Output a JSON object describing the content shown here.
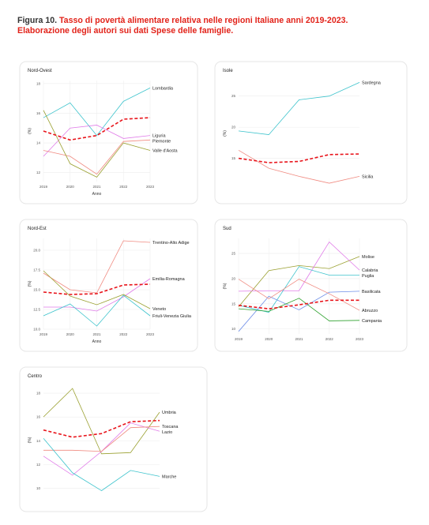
{
  "figure": {
    "label": "Figura 10.",
    "caption": "Tasso di povertà alimentare relativa nelle regioni Italiane anni 2019-2023. Elaborazione degli autori sui dati Spese delle famiglie."
  },
  "chart_data": [
    {
      "type": "line",
      "title": "Nord-Ovest",
      "xlabel": "Anno",
      "ylabel": "(%)",
      "x": [
        2019,
        2020,
        2021,
        2022,
        2023
      ],
      "xlim": [
        2019,
        2023
      ],
      "xticks": [
        2019,
        2020,
        2021,
        2022,
        2023
      ],
      "ylim": [
        11.4,
        18.2
      ],
      "yticks": [
        12,
        14,
        16,
        18
      ],
      "grid": true,
      "series": [
        {
          "name": "Lombardia",
          "color": "#3cc3cc",
          "values": [
            15.7,
            16.7,
            14.5,
            16.8,
            17.7
          ]
        },
        {
          "name": "Liguria",
          "color": "#e07be8",
          "values": [
            13.1,
            15.0,
            15.2,
            14.3,
            14.5
          ]
        },
        {
          "name": "Piemonte",
          "color": "#f08a80",
          "values": [
            13.5,
            13.1,
            11.9,
            14.1,
            14.2
          ]
        },
        {
          "name": "Valle d'Aosta",
          "color": "#9aa030",
          "values": [
            16.2,
            12.6,
            11.7,
            14.0,
            13.5
          ]
        },
        {
          "color": "#e8141b",
          "dashed": true,
          "values": [
            14.8,
            14.2,
            14.5,
            15.6,
            15.7
          ]
        }
      ]
    },
    {
      "type": "line",
      "title": "Isole",
      "ylabel": "(%)",
      "x": [
        2019,
        2020,
        2021,
        2022,
        2023
      ],
      "xlim": [
        2019,
        2023
      ],
      "ylim": [
        10.5,
        27.5
      ],
      "yticks": [
        15,
        20,
        25
      ],
      "grid": true,
      "series": [
        {
          "name": "Sardegna",
          "color": "#3cc3cc",
          "values": [
            19.4,
            18.8,
            24.4,
            25.0,
            27.2
          ]
        },
        {
          "name": "Sicilia",
          "color": "#f08a80",
          "values": [
            16.3,
            13.4,
            12.1,
            11.0,
            12.1
          ]
        },
        {
          "color": "#e8141b",
          "dashed": true,
          "values": [
            15.0,
            14.3,
            14.5,
            15.6,
            15.7
          ]
        }
      ]
    },
    {
      "type": "line",
      "title": "Nord-Est",
      "xlabel": "Anno",
      "ylabel": "(%)",
      "x": [
        2019,
        2020,
        2021,
        2022,
        2023
      ],
      "xlim": [
        2019,
        2023
      ],
      "xticks": [
        2019,
        2020,
        2021,
        2022,
        2023
      ],
      "ylim": [
        10,
        21.5
      ],
      "yticks": [
        {
          "value": 10,
          "label": "10.0"
        },
        {
          "value": 12.5,
          "label": "12.5"
        },
        {
          "value": 15,
          "label": "15.0"
        },
        {
          "value": 17.5,
          "label": "17.5"
        },
        {
          "value": 20,
          "label": "20.0"
        }
      ],
      "grid": true,
      "series": [
        {
          "name": "Trentino-Alto Adige",
          "color": "#f08a80",
          "values": [
            17.1,
            15.0,
            14.6,
            21.2,
            21.0
          ]
        },
        {
          "name": "Emilia-Romagna",
          "color": "#e07be8",
          "values": [
            12.8,
            12.8,
            12.3,
            14.1,
            16.4
          ]
        },
        {
          "name": "Veneto",
          "color": "#9aa030",
          "values": [
            17.4,
            14.2,
            13.1,
            14.4,
            12.6
          ]
        },
        {
          "name": "Friuli-Venezia Giulia",
          "color": "#3cc3cc",
          "values": [
            11.7,
            13.2,
            10.4,
            14.3,
            11.7
          ]
        },
        {
          "color": "#e8141b",
          "dashed": true,
          "values": [
            14.7,
            14.4,
            14.5,
            15.6,
            15.7
          ]
        }
      ]
    },
    {
      "type": "line",
      "title": "Sud",
      "ylabel": "(%)",
      "x": [
        2019,
        2020,
        2021,
        2022,
        2023
      ],
      "xlim": [
        2019,
        2023
      ],
      "xticks": [
        2019,
        2020,
        2021,
        2022,
        2023
      ],
      "ylim": [
        9,
        28
      ],
      "yticks": [
        10,
        15,
        20,
        25
      ],
      "grid": true,
      "series": [
        {
          "name": "Molise",
          "color": "#9aa030",
          "values": [
            14.4,
            21.6,
            22.6,
            22.0,
            24.4
          ]
        },
        {
          "name": "Calabria",
          "color": "#e07be8",
          "values": [
            17.5,
            17.6,
            17.6,
            27.3,
            21.7
          ]
        },
        {
          "name": "Puglia",
          "color": "#3cc3cc",
          "values": [
            14.7,
            13.3,
            22.4,
            20.7,
            20.7
          ]
        },
        {
          "name": "Basilicata",
          "color": "#6f8fe8",
          "values": [
            9.5,
            16.5,
            13.8,
            17.3,
            17.5
          ]
        },
        {
          "name": "Abruzzo",
          "color": "#f08a80",
          "values": [
            19.9,
            16.0,
            19.9,
            17.0,
            13.7
          ]
        },
        {
          "name": "Campania",
          "color": "#2ca02c",
          "values": [
            14.0,
            13.5,
            16.1,
            11.6,
            11.7
          ]
        },
        {
          "color": "#e8141b",
          "dashed": true,
          "values": [
            14.7,
            14.0,
            14.8,
            15.7,
            15.7
          ]
        }
      ]
    },
    {
      "type": "line",
      "title": "Centro",
      "ylabel": "(%)",
      "x": [
        2019,
        2020,
        2021,
        2022,
        2023
      ],
      "xlim": [
        2019,
        2023
      ],
      "ylim": [
        9.5,
        18.6
      ],
      "yticks": [
        10,
        12,
        14,
        16,
        18
      ],
      "grid": true,
      "series": [
        {
          "name": "Umbria",
          "color": "#9aa030",
          "values": [
            16.0,
            18.4,
            12.9,
            13.0,
            16.4
          ]
        },
        {
          "name": "Lazio",
          "color": "#e07be8",
          "values": [
            12.7,
            11.1,
            13.1,
            15.5,
            14.8
          ]
        },
        {
          "name": "Toscana",
          "color": "#f08a80",
          "values": [
            13.2,
            13.2,
            13.1,
            15.1,
            15.2
          ]
        },
        {
          "name": "Marche",
          "color": "#3cc3cc",
          "values": [
            14.2,
            11.3,
            9.8,
            11.5,
            11.0
          ]
        },
        {
          "color": "#e8141b",
          "dashed": true,
          "values": [
            14.9,
            14.3,
            14.6,
            15.6,
            15.7
          ]
        }
      ]
    }
  ]
}
